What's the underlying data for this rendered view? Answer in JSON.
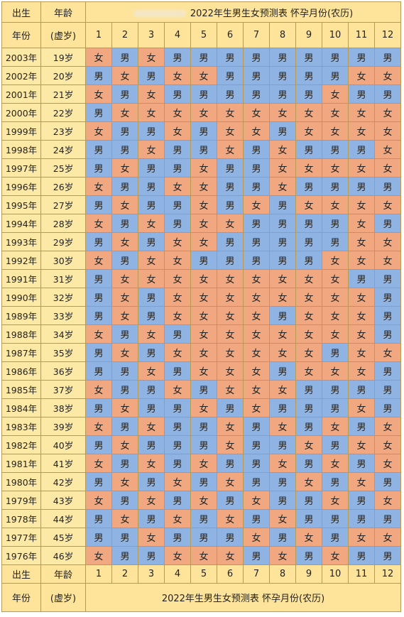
{
  "header": {
    "col_year": "出生",
    "col_age": "年龄",
    "year_label": "年份",
    "age_label": "(虚岁)",
    "title": "2022年生男生女预测表  怀孕月份(农历)",
    "months": [
      "1",
      "2",
      "3",
      "4",
      "5",
      "6",
      "7",
      "8",
      "9",
      "10",
      "11",
      "12"
    ]
  },
  "rows": [
    {
      "year": "2003年",
      "age": "19岁",
      "cells": [
        "女",
        "男",
        "女",
        "男",
        "男",
        "男",
        "男",
        "男",
        "男",
        "男",
        "男",
        "男"
      ]
    },
    {
      "year": "2002年",
      "age": "20岁",
      "cells": [
        "男",
        "女",
        "男",
        "女",
        "女",
        "男",
        "男",
        "男",
        "男",
        "男",
        "女",
        "女"
      ]
    },
    {
      "year": "2001年",
      "age": "21岁",
      "cells": [
        "女",
        "男",
        "女",
        "男",
        "男",
        "男",
        "男",
        "男",
        "男",
        "女",
        "男",
        "男"
      ]
    },
    {
      "year": "2000年",
      "age": "22岁",
      "cells": [
        "男",
        "女",
        "女",
        "女",
        "女",
        "女",
        "女",
        "女",
        "女",
        "女",
        "女",
        "女"
      ]
    },
    {
      "year": "1999年",
      "age": "23岁",
      "cells": [
        "女",
        "男",
        "男",
        "女",
        "男",
        "女",
        "女",
        "男",
        "女",
        "女",
        "女",
        "女"
      ]
    },
    {
      "year": "1998年",
      "age": "24岁",
      "cells": [
        "男",
        "男",
        "女",
        "男",
        "男",
        "女",
        "男",
        "女",
        "男",
        "男",
        "男",
        "女"
      ]
    },
    {
      "year": "1997年",
      "age": "25岁",
      "cells": [
        "男",
        "女",
        "男",
        "男",
        "女",
        "男",
        "男",
        "女",
        "女",
        "女",
        "女",
        "女"
      ]
    },
    {
      "year": "1996年",
      "age": "26岁",
      "cells": [
        "女",
        "男",
        "男",
        "女",
        "女",
        "男",
        "男",
        "女",
        "男",
        "男",
        "男",
        "男"
      ]
    },
    {
      "year": "1995年",
      "age": "27岁",
      "cells": [
        "男",
        "女",
        "男",
        "男",
        "女",
        "男",
        "女",
        "男",
        "女",
        "女",
        "女",
        "女"
      ]
    },
    {
      "year": "1994年",
      "age": "28岁",
      "cells": [
        "女",
        "男",
        "女",
        "男",
        "女",
        "女",
        "男",
        "男",
        "男",
        "男",
        "女",
        "男"
      ]
    },
    {
      "year": "1993年",
      "age": "29岁",
      "cells": [
        "男",
        "女",
        "男",
        "女",
        "女",
        "男",
        "男",
        "男",
        "男",
        "男",
        "女",
        "女"
      ]
    },
    {
      "year": "1992年",
      "age": "30岁",
      "cells": [
        "女",
        "男",
        "女",
        "女",
        "男",
        "男",
        "男",
        "男",
        "男",
        "女",
        "女",
        "女"
      ]
    },
    {
      "year": "1991年",
      "age": "31岁",
      "cells": [
        "男",
        "女",
        "女",
        "女",
        "女",
        "女",
        "女",
        "女",
        "女",
        "女",
        "男",
        "男"
      ]
    },
    {
      "year": "1990年",
      "age": "32岁",
      "cells": [
        "男",
        "女",
        "男",
        "女",
        "女",
        "女",
        "女",
        "女",
        "女",
        "女",
        "女",
        "男"
      ]
    },
    {
      "year": "1989年",
      "age": "33岁",
      "cells": [
        "男",
        "女",
        "男",
        "女",
        "女",
        "女",
        "女",
        "男",
        "女",
        "女",
        "女",
        "男"
      ]
    },
    {
      "year": "1988年",
      "age": "34岁",
      "cells": [
        "女",
        "男",
        "女",
        "男",
        "女",
        "女",
        "女",
        "女",
        "女",
        "女",
        "女",
        "男"
      ]
    },
    {
      "year": "1987年",
      "age": "35岁",
      "cells": [
        "男",
        "女",
        "男",
        "女",
        "女",
        "女",
        "女",
        "女",
        "女",
        "男",
        "女",
        "女"
      ]
    },
    {
      "year": "1986年",
      "age": "36岁",
      "cells": [
        "男",
        "男",
        "女",
        "男",
        "女",
        "女",
        "女",
        "男",
        "女",
        "女",
        "女",
        "男"
      ]
    },
    {
      "year": "1985年",
      "age": "37岁",
      "cells": [
        "女",
        "男",
        "男",
        "女",
        "男",
        "女",
        "女",
        "女",
        "男",
        "男",
        "男",
        "男"
      ]
    },
    {
      "year": "1984年",
      "age": "38岁",
      "cells": [
        "男",
        "女",
        "男",
        "男",
        "女",
        "男",
        "女",
        "男",
        "男",
        "男",
        "女",
        "男"
      ]
    },
    {
      "year": "1983年",
      "age": "39岁",
      "cells": [
        "女",
        "男",
        "女",
        "男",
        "男",
        "女",
        "男",
        "女",
        "男",
        "女",
        "男",
        "女"
      ]
    },
    {
      "year": "1982年",
      "age": "40岁",
      "cells": [
        "男",
        "女",
        "男",
        "男",
        "男",
        "女",
        "男",
        "男",
        "女",
        "男",
        "女",
        "女"
      ]
    },
    {
      "year": "1981年",
      "age": "41岁",
      "cells": [
        "女",
        "男",
        "女",
        "男",
        "女",
        "男",
        "男",
        "女",
        "男",
        "女",
        "男",
        "女"
      ]
    },
    {
      "year": "1980年",
      "age": "42岁",
      "cells": [
        "男",
        "女",
        "男",
        "女",
        "男",
        "女",
        "男",
        "男",
        "女",
        "男",
        "女",
        "男"
      ]
    },
    {
      "year": "1979年",
      "age": "43岁",
      "cells": [
        "女",
        "男",
        "女",
        "男",
        "女",
        "男",
        "女",
        "男",
        "男",
        "女",
        "男",
        "女"
      ]
    },
    {
      "year": "1978年",
      "age": "44岁",
      "cells": [
        "男",
        "女",
        "男",
        "女",
        "男",
        "女",
        "男",
        "女",
        "男",
        "男",
        "男",
        "男"
      ]
    },
    {
      "year": "1977年",
      "age": "45岁",
      "cells": [
        "男",
        "男",
        "女",
        "男",
        "男",
        "男",
        "女",
        "男",
        "女",
        "男",
        "女",
        "女"
      ]
    },
    {
      "year": "1976年",
      "age": "46岁",
      "cells": [
        "女",
        "男",
        "男",
        "女",
        "女",
        "女",
        "男",
        "女",
        "男",
        "女",
        "男",
        "男"
      ]
    }
  ],
  "footer": {
    "col_year": "出生",
    "col_age": "年龄",
    "months": [
      "1",
      "2",
      "3",
      "4",
      "5",
      "6",
      "7",
      "8",
      "9",
      "10",
      "11",
      "12"
    ],
    "year_label": "年份",
    "age_label": "(虚岁)",
    "title": "2022年生男生女预测表  怀孕月份(农历)"
  },
  "colors": {
    "boy": "#8fb3e3",
    "girl": "#f1a880",
    "header": "#fde49a",
    "border": "#b99a55"
  },
  "labels": {
    "boy": "男",
    "girl": "女"
  }
}
